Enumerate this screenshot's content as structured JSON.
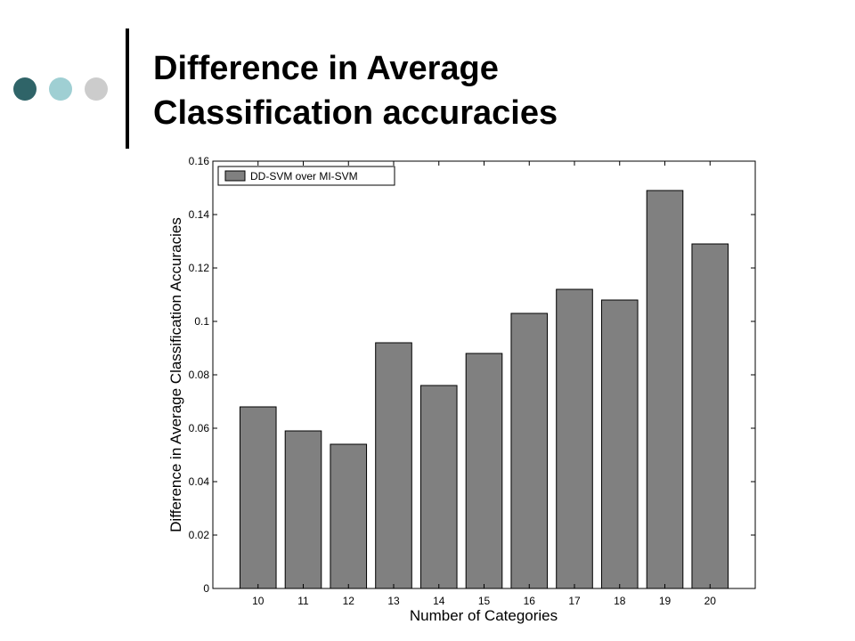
{
  "slide": {
    "title_line1": "Difference in Average",
    "title_line2": "Classification accuracies",
    "bullet_colors": [
      "#2f6468",
      "#9fcfd3",
      "#cccccc"
    ]
  },
  "chart_data": {
    "type": "bar",
    "title": "",
    "xlabel": "Number of Categories",
    "ylabel": "Difference in Average Classification Accuracies",
    "categories": [
      "10",
      "11",
      "12",
      "13",
      "14",
      "15",
      "16",
      "17",
      "18",
      "19",
      "20"
    ],
    "series": [
      {
        "name": "DD-SVM over MI-SVM",
        "values": [
          0.068,
          0.059,
          0.054,
          0.092,
          0.076,
          0.088,
          0.103,
          0.112,
          0.108,
          0.149,
          0.129
        ]
      }
    ],
    "ylim": [
      0,
      0.16
    ],
    "yticks": [
      "0",
      "0.02",
      "0.04",
      "0.06",
      "0.08",
      "0.1",
      "0.12",
      "0.14",
      "0.16"
    ],
    "legend": "top-left",
    "grid": false,
    "bar_color": "#808080"
  }
}
